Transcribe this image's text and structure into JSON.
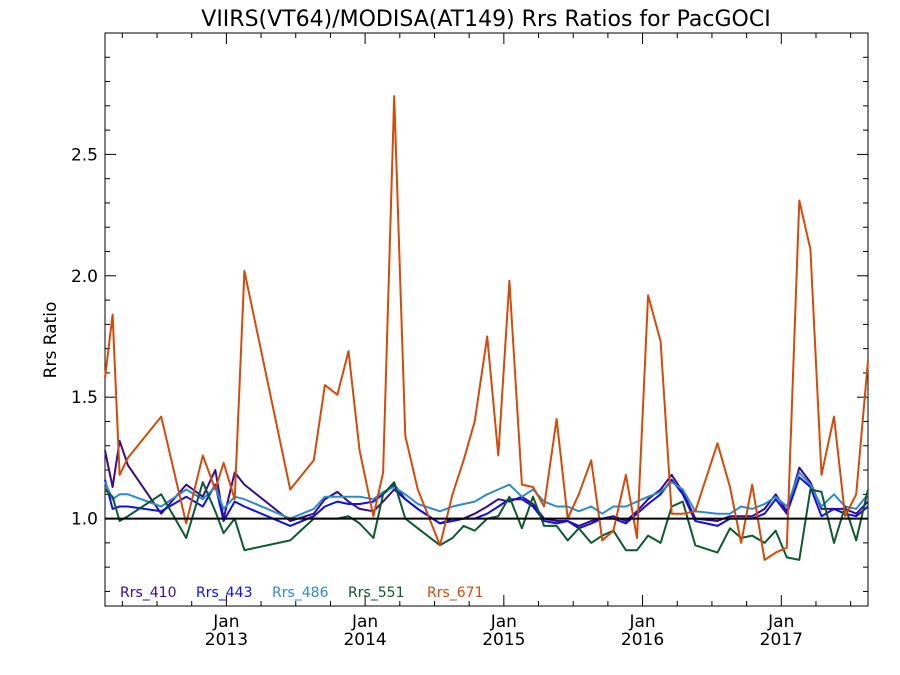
{
  "chart_data": {
    "type": "line",
    "title": "VIIRS(VT64)/MODISA(AT149)  Rrs Ratios for PacGOCI",
    "ylabel": "Rrs Ratio",
    "xlabel": "",
    "ylim": [
      0.64,
      3.0
    ],
    "xlim": [
      2012.125,
      2017.625
    ],
    "yticks": [
      1.0,
      1.5,
      2.0,
      2.5
    ],
    "ytick_labels": [
      "1.0",
      "1.5",
      "2.0",
      "2.5"
    ],
    "xticks": [
      {
        "month": "Jan",
        "year": "2013",
        "x": 2013.0
      },
      {
        "month": "Jan",
        "year": "2014",
        "x": 2014.0
      },
      {
        "month": "Jan",
        "year": "2015",
        "x": 2015.0
      },
      {
        "month": "Jan",
        "year": "2016",
        "x": 2016.0
      },
      {
        "month": "Jan",
        "year": "2017",
        "x": 2017.0
      }
    ],
    "reference_line": 1.0,
    "legend_position": "bottom-left",
    "grid": false,
    "series": [
      {
        "name": "Rrs_410",
        "color": "#3b0a8a",
        "x": [
          2012.125,
          2012.18,
          2012.23,
          2012.29,
          2012.53,
          2012.71,
          2012.83,
          2012.92,
          2012.98,
          2013.06,
          2013.13,
          2013.46,
          2013.63,
          2013.71,
          2013.8,
          2013.88,
          2013.96,
          2014.06,
          2014.13,
          2014.21,
          2014.29,
          2014.38,
          2014.54,
          2014.63,
          2014.71,
          2014.79,
          2014.88,
          2014.96,
          2015.04,
          2015.13,
          2015.21,
          2015.29,
          2015.38,
          2015.46,
          2015.54,
          2015.63,
          2015.71,
          2015.79,
          2015.88,
          2015.96,
          2016.04,
          2016.13,
          2016.21,
          2016.29,
          2016.38,
          2016.54,
          2016.63,
          2016.71,
          2016.79,
          2016.88,
          2016.96,
          2017.04,
          2017.13,
          2017.21,
          2017.29,
          2017.38,
          2017.46,
          2017.54,
          2017.625
        ],
        "values": [
          1.28,
          1.13,
          1.32,
          1.22,
          1.02,
          1.14,
          1.09,
          1.2,
          1.0,
          1.19,
          1.14,
          0.99,
          1.02,
          1.08,
          1.11,
          1.07,
          1.04,
          1.03,
          1.07,
          1.12,
          1.08,
          1.04,
          0.98,
          1.0,
          1.0,
          1.02,
          1.05,
          1.08,
          1.07,
          1.09,
          1.06,
          1.0,
          0.99,
          0.99,
          0.97,
          0.99,
          1.0,
          1.01,
          0.99,
          1.03,
          1.08,
          1.12,
          1.18,
          1.11,
          1.0,
          0.99,
          1.01,
          1.01,
          1.01,
          1.04,
          1.1,
          1.03,
          1.21,
          1.15,
          1.04,
          1.04,
          1.04,
          1.02,
          1.07
        ]
      },
      {
        "name": "Rrs_443",
        "color": "#1010e0",
        "x": [
          2012.125,
          2012.18,
          2012.23,
          2012.29,
          2012.53,
          2012.71,
          2012.83,
          2012.92,
          2012.98,
          2013.06,
          2013.13,
          2013.46,
          2013.63,
          2013.71,
          2013.8,
          2013.88,
          2013.96,
          2014.06,
          2014.13,
          2014.21,
          2014.29,
          2014.38,
          2014.54,
          2014.63,
          2014.71,
          2014.79,
          2014.88,
          2014.96,
          2015.04,
          2015.13,
          2015.21,
          2015.29,
          2015.38,
          2015.46,
          2015.54,
          2015.63,
          2015.71,
          2015.79,
          2015.88,
          2015.96,
          2016.04,
          2016.13,
          2016.21,
          2016.29,
          2016.38,
          2016.54,
          2016.63,
          2016.71,
          2016.79,
          2016.88,
          2016.96,
          2017.04,
          2017.13,
          2017.21,
          2017.29,
          2017.38,
          2017.46,
          2017.54,
          2017.625
        ],
        "values": [
          1.16,
          1.04,
          1.05,
          1.05,
          1.03,
          1.09,
          1.05,
          1.14,
          0.99,
          1.07,
          1.05,
          0.97,
          1.01,
          1.05,
          1.07,
          1.06,
          1.06,
          1.07,
          1.1,
          1.14,
          1.08,
          1.04,
          0.98,
          0.99,
          1.0,
          1.0,
          1.02,
          1.05,
          1.08,
          1.08,
          1.05,
          0.99,
          0.98,
          0.99,
          0.96,
          0.98,
          1.0,
          1.0,
          0.98,
          1.02,
          1.06,
          1.1,
          1.16,
          1.1,
          0.99,
          0.97,
          1.0,
          1.0,
          1.0,
          1.02,
          1.08,
          1.02,
          1.17,
          1.13,
          1.01,
          1.04,
          1.02,
          1.01,
          1.05
        ]
      },
      {
        "name": "Rrs_486",
        "color": "#2f8ac8",
        "x": [
          2012.125,
          2012.18,
          2012.23,
          2012.29,
          2012.53,
          2012.71,
          2012.83,
          2012.92,
          2012.98,
          2013.06,
          2013.13,
          2013.46,
          2013.63,
          2013.71,
          2013.8,
          2013.88,
          2013.96,
          2014.06,
          2014.13,
          2014.21,
          2014.29,
          2014.38,
          2014.54,
          2014.63,
          2014.71,
          2014.79,
          2014.88,
          2014.96,
          2015.04,
          2015.13,
          2015.21,
          2015.29,
          2015.38,
          2015.46,
          2015.54,
          2015.63,
          2015.71,
          2015.79,
          2015.88,
          2015.96,
          2016.04,
          2016.13,
          2016.21,
          2016.29,
          2016.38,
          2016.54,
          2016.63,
          2016.71,
          2016.79,
          2016.88,
          2016.96,
          2017.04,
          2017.13,
          2017.21,
          2017.29,
          2017.38,
          2017.46,
          2017.54,
          2017.625
        ],
        "values": [
          1.15,
          1.08,
          1.1,
          1.1,
          1.05,
          1.12,
          1.08,
          1.13,
          1.04,
          1.09,
          1.08,
          1.0,
          1.04,
          1.09,
          1.09,
          1.09,
          1.09,
          1.08,
          1.11,
          1.13,
          1.1,
          1.06,
          1.03,
          1.05,
          1.06,
          1.07,
          1.1,
          1.12,
          1.14,
          1.09,
          1.12,
          1.07,
          1.05,
          1.05,
          1.03,
          1.05,
          1.02,
          1.05,
          1.05,
          1.07,
          1.09,
          1.11,
          1.15,
          1.12,
          1.03,
          1.02,
          1.02,
          1.05,
          1.04,
          1.06,
          1.09,
          1.05,
          1.19,
          1.14,
          1.05,
          1.1,
          1.05,
          1.04,
          1.1
        ]
      },
      {
        "name": "Rrs_551",
        "color": "#0d5a2e",
        "x": [
          2012.125,
          2012.18,
          2012.23,
          2012.29,
          2012.53,
          2012.71,
          2012.83,
          2012.92,
          2012.98,
          2013.06,
          2013.13,
          2013.46,
          2013.63,
          2013.71,
          2013.8,
          2013.88,
          2013.96,
          2014.06,
          2014.13,
          2014.21,
          2014.29,
          2014.38,
          2014.54,
          2014.63,
          2014.71,
          2014.79,
          2014.88,
          2014.96,
          2015.04,
          2015.13,
          2015.21,
          2015.29,
          2015.38,
          2015.46,
          2015.54,
          2015.63,
          2015.71,
          2015.79,
          2015.88,
          2015.96,
          2016.04,
          2016.13,
          2016.21,
          2016.29,
          2016.38,
          2016.54,
          2016.63,
          2016.71,
          2016.79,
          2016.88,
          2016.96,
          2017.04,
          2017.13,
          2017.21,
          2017.29,
          2017.38,
          2017.46,
          2017.54,
          2017.625
        ],
        "values": [
          1.12,
          1.09,
          0.99,
          1.01,
          1.1,
          0.92,
          1.15,
          1.03,
          0.94,
          1.0,
          0.87,
          0.91,
          1.0,
          1.0,
          1.0,
          1.01,
          0.98,
          0.92,
          1.1,
          1.15,
          1.0,
          0.96,
          0.89,
          0.92,
          0.97,
          0.95,
          1.0,
          1.01,
          1.09,
          0.96,
          1.09,
          0.97,
          0.97,
          0.91,
          0.96,
          0.9,
          0.93,
          0.95,
          0.87,
          0.87,
          0.93,
          0.9,
          1.05,
          1.07,
          0.89,
          0.86,
          0.96,
          0.92,
          0.93,
          0.9,
          0.95,
          0.84,
          0.83,
          1.12,
          1.11,
          0.9,
          1.05,
          0.91,
          1.12
        ]
      },
      {
        "name": "Rrs_671",
        "color": "#d14b0a",
        "x": [
          2012.125,
          2012.18,
          2012.23,
          2012.29,
          2012.53,
          2012.71,
          2012.83,
          2012.92,
          2012.98,
          2013.06,
          2013.13,
          2013.46,
          2013.63,
          2013.71,
          2013.8,
          2013.88,
          2013.96,
          2014.06,
          2014.13,
          2014.21,
          2014.29,
          2014.38,
          2014.54,
          2014.63,
          2014.71,
          2014.79,
          2014.88,
          2014.96,
          2015.04,
          2015.13,
          2015.21,
          2015.29,
          2015.38,
          2015.46,
          2015.54,
          2015.63,
          2015.71,
          2015.79,
          2015.88,
          2015.96,
          2016.04,
          2016.13,
          2016.21,
          2016.29,
          2016.38,
          2016.54,
          2016.63,
          2016.71,
          2016.79,
          2016.88,
          2016.96,
          2017.04,
          2017.13,
          2017.21,
          2017.29,
          2017.38,
          2017.46,
          2017.54,
          2017.625
        ],
        "values": [
          1.58,
          1.84,
          1.18,
          1.25,
          1.42,
          0.98,
          1.26,
          1.12,
          1.23,
          1.08,
          2.02,
          1.12,
          1.24,
          1.55,
          1.51,
          1.69,
          1.28,
          1.01,
          1.19,
          2.74,
          1.34,
          1.12,
          0.89,
          1.1,
          1.24,
          1.4,
          1.75,
          1.26,
          1.98,
          1.14,
          1.13,
          1.05,
          1.41,
          1.0,
          1.1,
          1.24,
          0.91,
          0.95,
          1.18,
          0.92,
          1.92,
          1.73,
          1.02,
          1.02,
          1.03,
          1.31,
          1.13,
          0.9,
          1.14,
          0.83,
          0.86,
          0.88,
          2.31,
          2.11,
          1.18,
          1.42,
          1.01,
          1.1,
          1.65
        ]
      }
    ]
  }
}
